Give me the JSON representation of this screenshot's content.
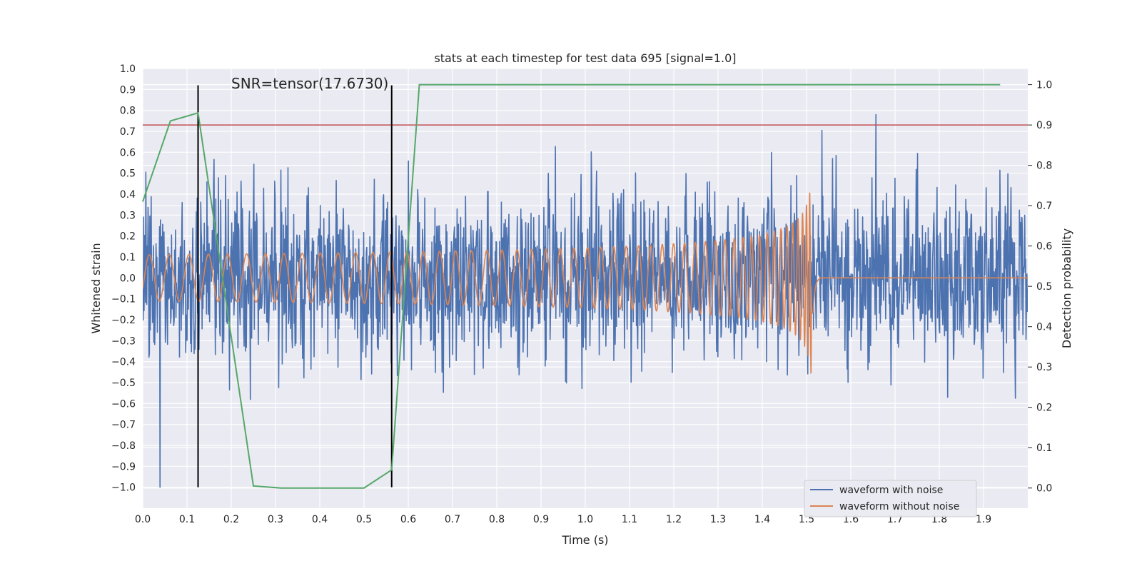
{
  "chart_data": {
    "type": "line",
    "title": "stats at each timestep for test data 695 [signal=1.0]",
    "xlabel": "Time (s)",
    "ylabel": "Whitened strain",
    "y2label": "Detection probability",
    "annotation": "SNR=tensor(17.6730)",
    "xlim": [
      0.0,
      2.0
    ],
    "ylim": [
      -1.1,
      1.0
    ],
    "y2lim": [
      -0.05,
      1.04
    ],
    "x_ticks": [
      "0.0",
      "0.1",
      "0.2",
      "0.3",
      "0.4",
      "0.5",
      "0.6",
      "0.7",
      "0.8",
      "0.9",
      "1.0",
      "1.1",
      "1.2",
      "1.3",
      "1.4",
      "1.5",
      "1.6",
      "1.7",
      "1.8",
      "1.9"
    ],
    "y_ticks": [
      "1.0",
      "0.9",
      "0.8",
      "0.7",
      "0.6",
      "0.5",
      "0.4",
      "0.3",
      "0.2",
      "0.1",
      "0.0",
      "-0.1",
      "-0.2",
      "-0.3",
      "-0.4",
      "-0.5",
      "-0.6",
      "-0.7",
      "-0.8",
      "-0.9",
      "-1.0"
    ],
    "y2_ticks": [
      "1.0",
      "0.9",
      "0.8",
      "0.7",
      "0.6",
      "0.5",
      "0.4",
      "0.3",
      "0.2",
      "0.1",
      "0.0"
    ],
    "grid": true,
    "legend_position": "bottom-right",
    "series": [
      {
        "name": "waveform with noise",
        "color": "#4c72b0",
        "axis": "left",
        "description": "noisy whitened strain, approx uniform noise of amplitude ~0.4 with peaks near 0.9 and -1.0, spanning 0.0 to 2.0 s"
      },
      {
        "name": "waveform without noise",
        "color": "#dd8452",
        "axis": "left",
        "description": "chirp signal, amplitude ~0.11 from 0 to 0.5 s, growing to ~0.45 / -0.52 near 1.515 s, then 0.0 after merger at ~1.53 s"
      }
    ],
    "probability_series": {
      "color": "#55a868",
      "axis": "right",
      "x": [
        0.0,
        0.0625,
        0.125,
        0.25,
        0.3125,
        0.5,
        0.5625,
        0.625,
        0.6875,
        1.9375
      ],
      "y": [
        0.71,
        0.91,
        0.93,
        0.005,
        0.0,
        0.0,
        0.045,
        1.0,
        1.0,
        1.0
      ]
    },
    "threshold": {
      "value": 0.9,
      "axis": "right",
      "color": "#c44e52"
    },
    "vlines": {
      "x": [
        0.125,
        0.5625
      ],
      "color": "#000000",
      "range": [
        -1.0,
        0.92
      ]
    },
    "noisy_seed": 695,
    "peak_merger_time": 1.515
  }
}
